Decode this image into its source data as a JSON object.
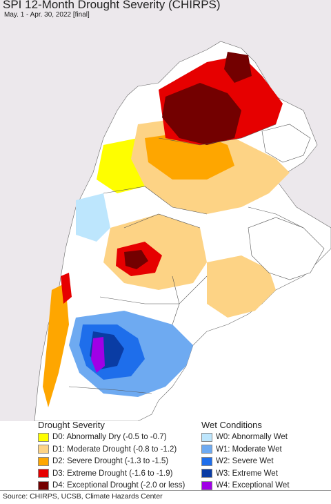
{
  "header": {
    "title": "SPI 12-Month Drought Severity (CHIRPS)",
    "subtitle": "May. 1 - Apr. 30, 2022 [final]"
  },
  "legend": {
    "drought": {
      "heading": "Drought Severity",
      "items": [
        {
          "label": "D0: Abnormally Dry (-0.5 to -0.7)",
          "color": "#fefe00"
        },
        {
          "label": "D1: Moderate Drought (-0.8 to -1.2)",
          "color": "#fdd385"
        },
        {
          "label": "D2: Severe Drought (-1.3 to -1.5)",
          "color": "#fea600"
        },
        {
          "label": "D3: Extreme Drought (-1.6 to -1.9)",
          "color": "#e60000"
        },
        {
          "label": "D4: Exceptional Drought (-2.0 or less)",
          "color": "#730000"
        }
      ]
    },
    "wet": {
      "heading": "Wet Conditions",
      "items": [
        {
          "label": "W0: Abnormally Wet",
          "color": "#bde6fd"
        },
        {
          "label": "W1: Moderate Wet",
          "color": "#6eaaf1"
        },
        {
          "label": "W2: Severe Wet",
          "color": "#1e6eeb"
        },
        {
          "label": "W3: Extreme Wet",
          "color": "#0a3ca4"
        },
        {
          "label": "W4: Exceptional Wet",
          "color": "#a000e6"
        }
      ]
    }
  },
  "map_colors": {
    "ocean": "#ffffff",
    "outside_land": "#ece8ec",
    "border": "#555555"
  },
  "footer": {
    "source": "Source: CHIRPS, UCSB, Climate Hazards Center"
  }
}
